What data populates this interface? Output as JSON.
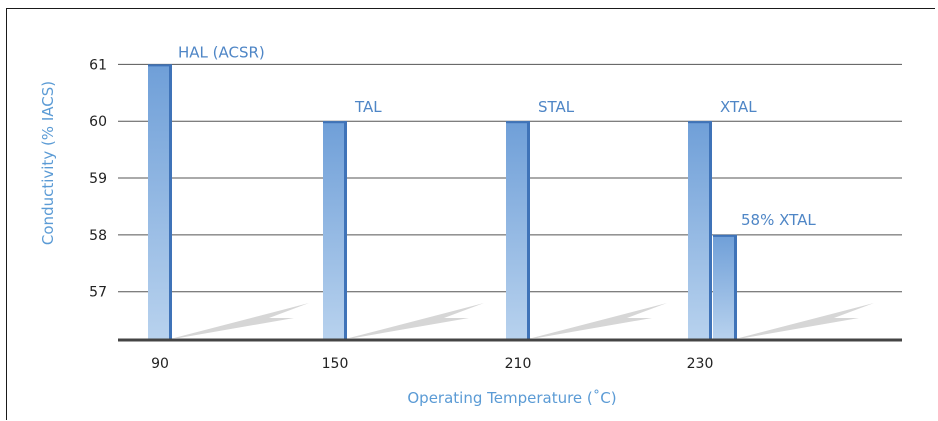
{
  "chart_data": {
    "type": "bar",
    "title": "",
    "xlabel": "Operating Temperature (˚C)",
    "ylabel": "Conductivity (% IACS)",
    "categories": [
      "90",
      "150",
      "210",
      "230"
    ],
    "yticks": [
      "57",
      "58",
      "59",
      "60",
      "61"
    ],
    "ylim": [
      56.15,
      61.2
    ],
    "grid": true,
    "bars": [
      {
        "category": "90",
        "value": 61,
        "label": "HAL (ACSR)"
      },
      {
        "category": "150",
        "value": 60,
        "label": "TAL"
      },
      {
        "category": "210",
        "value": 60,
        "label": "STAL"
      },
      {
        "category": "230",
        "value": 60,
        "label": "XTAL"
      },
      {
        "category": "230",
        "value": 58,
        "label": "58% XTAL"
      }
    ],
    "colors": {
      "bar_top": "#6f9fd8",
      "bar_bottom": "#b8d2ee",
      "bar_side": "#3f73b8",
      "grid": "#555555",
      "axis": "#444444",
      "shadow": "#d6d6d6",
      "label": "#5b9bd5"
    }
  }
}
